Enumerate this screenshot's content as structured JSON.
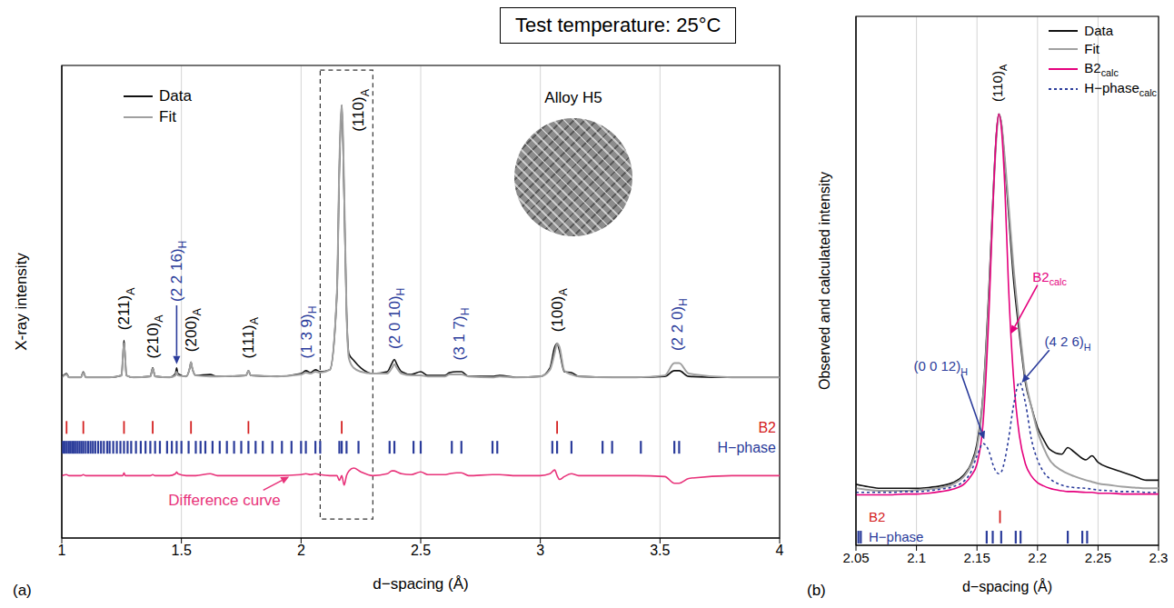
{
  "title": "Test temperature: 25°C",
  "chart_data": [
    {
      "type": "line",
      "panel": "(a)",
      "x_label": "d−spacing (Å)",
      "y_label": "X-ray intensity",
      "xlim": [
        1,
        4
      ],
      "xticks": [
        1,
        1.5,
        2,
        2.5,
        3,
        3.5,
        4
      ],
      "ylim": [
        0,
        5
      ],
      "yticks": [
        0,
        1,
        2,
        3,
        4,
        5
      ],
      "grid": true,
      "tick_labels": "x",
      "legend": "top left",
      "inset": "Alloy H5",
      "x": [
        1.0,
        1.02,
        1.03,
        1.08,
        1.09,
        1.1,
        1.2,
        1.25,
        1.255,
        1.26,
        1.265,
        1.27,
        1.3,
        1.37,
        1.38,
        1.39,
        1.45,
        1.475,
        1.48,
        1.485,
        1.52,
        1.535,
        1.54,
        1.545,
        1.56,
        1.62,
        1.65,
        1.77,
        1.78,
        1.79,
        1.9,
        2.0,
        2.02,
        2.04,
        2.06,
        2.08,
        2.12,
        2.15,
        2.16,
        2.17,
        2.18,
        2.19,
        2.2,
        2.22,
        2.25,
        2.3,
        2.36,
        2.38,
        2.39,
        2.4,
        2.42,
        2.46,
        2.5,
        2.53,
        2.6,
        2.62,
        2.65,
        2.67,
        2.7,
        2.8,
        2.83,
        2.9,
        3.0,
        3.04,
        3.06,
        3.07,
        3.08,
        3.1,
        3.13,
        3.16,
        3.3,
        3.4,
        3.52,
        3.56,
        3.58,
        3.62,
        3.8,
        4.0
      ],
      "series": [
        {
          "name": "Data",
          "color": "#111111",
          "values": [
            1.7,
            1.74,
            1.7,
            1.7,
            1.76,
            1.7,
            1.7,
            1.72,
            1.9,
            2.09,
            1.9,
            1.72,
            1.7,
            1.71,
            1.8,
            1.71,
            1.7,
            1.74,
            1.8,
            1.74,
            1.71,
            1.8,
            1.86,
            1.8,
            1.72,
            1.73,
            1.71,
            1.72,
            1.77,
            1.72,
            1.71,
            1.74,
            1.77,
            1.75,
            1.78,
            1.76,
            1.78,
            2.6,
            3.9,
            4.58,
            3.6,
            2.4,
            1.95,
            1.88,
            1.8,
            1.74,
            1.76,
            1.85,
            1.89,
            1.84,
            1.76,
            1.73,
            1.76,
            1.72,
            1.72,
            1.75,
            1.76,
            1.76,
            1.71,
            1.71,
            1.72,
            1.7,
            1.71,
            1.8,
            2.02,
            2.06,
            1.98,
            1.76,
            1.75,
            1.71,
            1.7,
            1.7,
            1.71,
            1.77,
            1.77,
            1.71,
            1.7,
            1.7
          ]
        },
        {
          "name": "Fit",
          "color": "#a0a0a0",
          "values": [
            1.7,
            1.73,
            1.7,
            1.7,
            1.75,
            1.7,
            1.7,
            1.72,
            1.9,
            2.06,
            1.9,
            1.72,
            1.7,
            1.71,
            1.79,
            1.71,
            1.7,
            1.72,
            1.76,
            1.72,
            1.71,
            1.8,
            1.86,
            1.8,
            1.72,
            1.71,
            1.71,
            1.72,
            1.77,
            1.72,
            1.71,
            1.73,
            1.75,
            1.74,
            1.76,
            1.75,
            1.78,
            2.6,
            3.95,
            4.58,
            3.7,
            2.4,
            1.9,
            1.8,
            1.76,
            1.74,
            1.74,
            1.8,
            1.84,
            1.8,
            1.74,
            1.72,
            1.72,
            1.71,
            1.71,
            1.73,
            1.73,
            1.73,
            1.71,
            1.7,
            1.71,
            1.7,
            1.71,
            1.78,
            1.96,
            2.06,
            2.02,
            1.77,
            1.73,
            1.71,
            1.7,
            1.7,
            1.72,
            1.85,
            1.85,
            1.74,
            1.7,
            1.7
          ]
        }
      ],
      "difference": {
        "color": "#e8337a",
        "values": [
          0.66,
          0.67,
          0.66,
          0.66,
          0.67,
          0.66,
          0.66,
          0.66,
          0.66,
          0.69,
          0.66,
          0.66,
          0.66,
          0.66,
          0.67,
          0.66,
          0.66,
          0.68,
          0.7,
          0.68,
          0.66,
          0.66,
          0.66,
          0.66,
          0.66,
          0.68,
          0.66,
          0.66,
          0.66,
          0.66,
          0.66,
          0.67,
          0.68,
          0.67,
          0.68,
          0.67,
          0.66,
          0.66,
          0.61,
          0.66,
          0.56,
          0.66,
          0.71,
          0.74,
          0.7,
          0.66,
          0.68,
          0.71,
          0.71,
          0.7,
          0.68,
          0.67,
          0.7,
          0.67,
          0.67,
          0.68,
          0.69,
          0.69,
          0.66,
          0.67,
          0.67,
          0.66,
          0.66,
          0.68,
          0.72,
          0.66,
          0.62,
          0.65,
          0.68,
          0.66,
          0.66,
          0.66,
          0.65,
          0.58,
          0.58,
          0.63,
          0.66,
          0.66
        ]
      },
      "reflections": [
        {
          "name": "B2",
          "color": "#d42020",
          "level": 1.17,
          "x": [
            1.02,
            1.09,
            1.26,
            1.38,
            1.54,
            1.78,
            2.17,
            3.07
          ]
        },
        {
          "name": "H−phase",
          "color": "#2b3c9b",
          "level": 0.96,
          "x": [
            1.005,
            1.012,
            1.02,
            1.028,
            1.035,
            1.043,
            1.05,
            1.058,
            1.066,
            1.074,
            1.082,
            1.09,
            1.1,
            1.11,
            1.12,
            1.13,
            1.14,
            1.152,
            1.164,
            1.176,
            1.19,
            1.2,
            1.215,
            1.23,
            1.245,
            1.26,
            1.275,
            1.29,
            1.31,
            1.33,
            1.35,
            1.37,
            1.39,
            1.41,
            1.44,
            1.46,
            1.48,
            1.5,
            1.53,
            1.56,
            1.58,
            1.6,
            1.63,
            1.66,
            1.69,
            1.72,
            1.75,
            1.78,
            1.81,
            1.84,
            1.88,
            1.92,
            1.96,
            2.0,
            2.02,
            2.06,
            2.08,
            2.16,
            2.17,
            2.19,
            2.24,
            2.37,
            2.39,
            2.47,
            2.5,
            2.63,
            2.67,
            2.8,
            2.82,
            3.05,
            3.07,
            3.13,
            3.26,
            3.3,
            3.42,
            3.56,
            3.58
          ]
        }
      ],
      "zoom_box": {
        "x": [
          2.08,
          2.3
        ],
        "y": [
          0.2,
          4.95
        ]
      },
      "annotations": [
        {
          "text": "(211)",
          "sub": "A",
          "x": 1.26,
          "y": 2.2,
          "color": "#000000"
        },
        {
          "text": "(210)",
          "sub": "A",
          "x": 1.38,
          "y": 1.9,
          "color": "#000000"
        },
        {
          "text": "(2 2 16)",
          "sub": "H",
          "x": 1.48,
          "y": 2.5,
          "arrow_x": 1.48,
          "arrow_y": 1.84,
          "color": "#2b3c9b"
        },
        {
          "text": "(200)",
          "sub": "A",
          "x": 1.54,
          "y": 1.97,
          "color": "#000000"
        },
        {
          "text": "(111)",
          "sub": "A",
          "x": 1.78,
          "y": 1.9,
          "color": "#000000"
        },
        {
          "text": "(1 3 9)",
          "sub": "H",
          "x": 2.02,
          "y": 1.9,
          "color": "#2b3c9b"
        },
        {
          "text": "(110)",
          "sub": "A",
          "x": 2.24,
          "y": 4.3,
          "color": "#000000"
        },
        {
          "text": "(2 0 10)",
          "sub": "H",
          "x": 2.39,
          "y": 2.0,
          "color": "#2b3c9b"
        },
        {
          "text": "(3 1 7)",
          "sub": "H",
          "x": 2.66,
          "y": 1.88,
          "color": "#2b3c9b"
        },
        {
          "text": "(100)",
          "sub": "A",
          "x": 3.07,
          "y": 2.18,
          "color": "#000000"
        },
        {
          "text": "(2 2 0)",
          "sub": "H",
          "x": 3.57,
          "y": 1.98,
          "color": "#2b3c9b"
        },
        {
          "text": "Difference curve",
          "x": 1.68,
          "y": 0.4,
          "arrow_x": 1.95,
          "arrow_y": 0.65,
          "color": "#e8337a"
        }
      ]
    },
    {
      "type": "line",
      "panel": "(b)",
      "x_label": "d−spacing (Å)",
      "y_label": "Observed and calculated intensity",
      "xlim": [
        2.05,
        2.3
      ],
      "xticks": [
        2.05,
        2.1,
        2.15,
        2.2,
        2.25,
        2.3
      ],
      "ylim": [
        0,
        6.5
      ],
      "yticks": [
        0,
        1,
        2,
        3,
        4,
        5,
        6
      ],
      "grid": true,
      "tick_labels": "x",
      "legend": "top right",
      "x": [
        2.05,
        2.06,
        2.07,
        2.08,
        2.09,
        2.1,
        2.11,
        2.12,
        2.13,
        2.14,
        2.145,
        2.15,
        2.155,
        2.16,
        2.163,
        2.166,
        2.168,
        2.17,
        2.173,
        2.176,
        2.18,
        2.185,
        2.19,
        2.195,
        2.2,
        2.205,
        2.21,
        2.22,
        2.225,
        2.23,
        2.24,
        2.245,
        2.25,
        2.26,
        2.27,
        2.28,
        2.29,
        2.3
      ],
      "series": [
        {
          "name": "Data",
          "color": "#111111",
          "values": [
            0.75,
            0.72,
            0.7,
            0.7,
            0.7,
            0.7,
            0.71,
            0.73,
            0.77,
            0.88,
            1.0,
            1.25,
            1.85,
            3.2,
            4.2,
            5.05,
            5.3,
            5.2,
            4.7,
            4.1,
            3.3,
            2.6,
            2.0,
            1.7,
            1.45,
            1.3,
            1.18,
            1.12,
            1.2,
            1.15,
            1.05,
            1.1,
            1.02,
            0.95,
            0.9,
            0.85,
            0.8,
            0.8
          ]
        },
        {
          "name": "Fit",
          "color": "#a0a0a0",
          "values": [
            0.7,
            0.68,
            0.67,
            0.67,
            0.67,
            0.68,
            0.69,
            0.71,
            0.75,
            0.86,
            0.98,
            1.2,
            1.8,
            3.1,
            4.15,
            5.0,
            5.3,
            5.2,
            4.75,
            4.2,
            3.45,
            2.7,
            2.05,
            1.7,
            1.4,
            1.2,
            1.05,
            0.92,
            0.88,
            0.85,
            0.8,
            0.78,
            0.76,
            0.74,
            0.72,
            0.71,
            0.7,
            0.7
          ]
        },
        {
          "name": "B2",
          "sub": "calc",
          "color": "#e5007d",
          "values": [
            0.62,
            0.62,
            0.62,
            0.62,
            0.63,
            0.63,
            0.64,
            0.66,
            0.69,
            0.76,
            0.85,
            1.0,
            1.5,
            2.9,
            4.1,
            5.05,
            5.3,
            5.15,
            4.4,
            3.2,
            2.1,
            1.35,
            1.0,
            0.85,
            0.77,
            0.73,
            0.7,
            0.67,
            0.66,
            0.66,
            0.65,
            0.65,
            0.64,
            0.64,
            0.63,
            0.63,
            0.63,
            0.63
          ]
        },
        {
          "name": "H−phase",
          "sub": "calc",
          "color": "#2b3c9b",
          "line_style": "dotted",
          "values": [
            0.65,
            0.65,
            0.65,
            0.65,
            0.66,
            0.66,
            0.67,
            0.69,
            0.72,
            0.8,
            0.9,
            1.1,
            1.25,
            1.15,
            1.0,
            0.9,
            0.88,
            0.9,
            1.05,
            1.3,
            1.7,
            2.0,
            1.75,
            1.3,
            1.05,
            0.9,
            0.82,
            0.74,
            0.72,
            0.71,
            0.7,
            0.69,
            0.68,
            0.67,
            0.66,
            0.66,
            0.65,
            0.65
          ]
        }
      ],
      "reflections": [
        {
          "name": "B2",
          "color": "#d42020",
          "level": 0.35,
          "x": [
            2.169
          ]
        },
        {
          "name": "H−phase",
          "color": "#2b3c9b",
          "level": 0.1,
          "x": [
            2.052,
            2.054,
            2.158,
            2.163,
            2.17,
            2.182,
            2.186,
            2.225,
            2.237,
            2.241
          ]
        }
      ],
      "annotations": [
        {
          "text": "(110)",
          "sub": "A",
          "x": 2.167,
          "y": 5.45,
          "color": "#000000"
        },
        {
          "text": "(0 0 12)",
          "sub": "H",
          "x": 2.12,
          "y": 2.2,
          "arrow_x": 2.156,
          "arrow_y": 1.3,
          "color": "#2b3c9b"
        },
        {
          "text": "(4 2 6)",
          "sub": "H",
          "x": 2.225,
          "y": 2.5,
          "arrow_x": 2.187,
          "arrow_y": 2.0,
          "color": "#2b3c9b"
        },
        {
          "text": "B2",
          "sub": "calc",
          "x": 2.21,
          "y": 3.3,
          "arrow_x": 2.178,
          "arrow_y": 2.6,
          "color": "#e5007d"
        }
      ]
    }
  ]
}
